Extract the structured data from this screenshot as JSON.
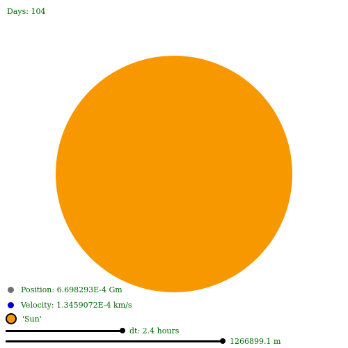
{
  "header": {
    "days_label": "Days: 104"
  },
  "canvas": {
    "sun_color": "#f89800"
  },
  "legend": {
    "position": {
      "label": "Position: 6.698293E-4 Gm",
      "dot_color": "#707070",
      "icon": "grey-dot-icon"
    },
    "velocity": {
      "label": "Velocity: 1.3459072E-4 km/s",
      "dot_color": "#0000cc",
      "icon": "blue-dot-icon"
    },
    "body": {
      "label": "'Sun'",
      "swatch_color": "#f89800",
      "icon": "sun-swatch-icon"
    }
  },
  "controls": {
    "dt": {
      "label": "dt: 2.4 hours"
    },
    "scale": {
      "label": "1266899.1 m"
    }
  }
}
